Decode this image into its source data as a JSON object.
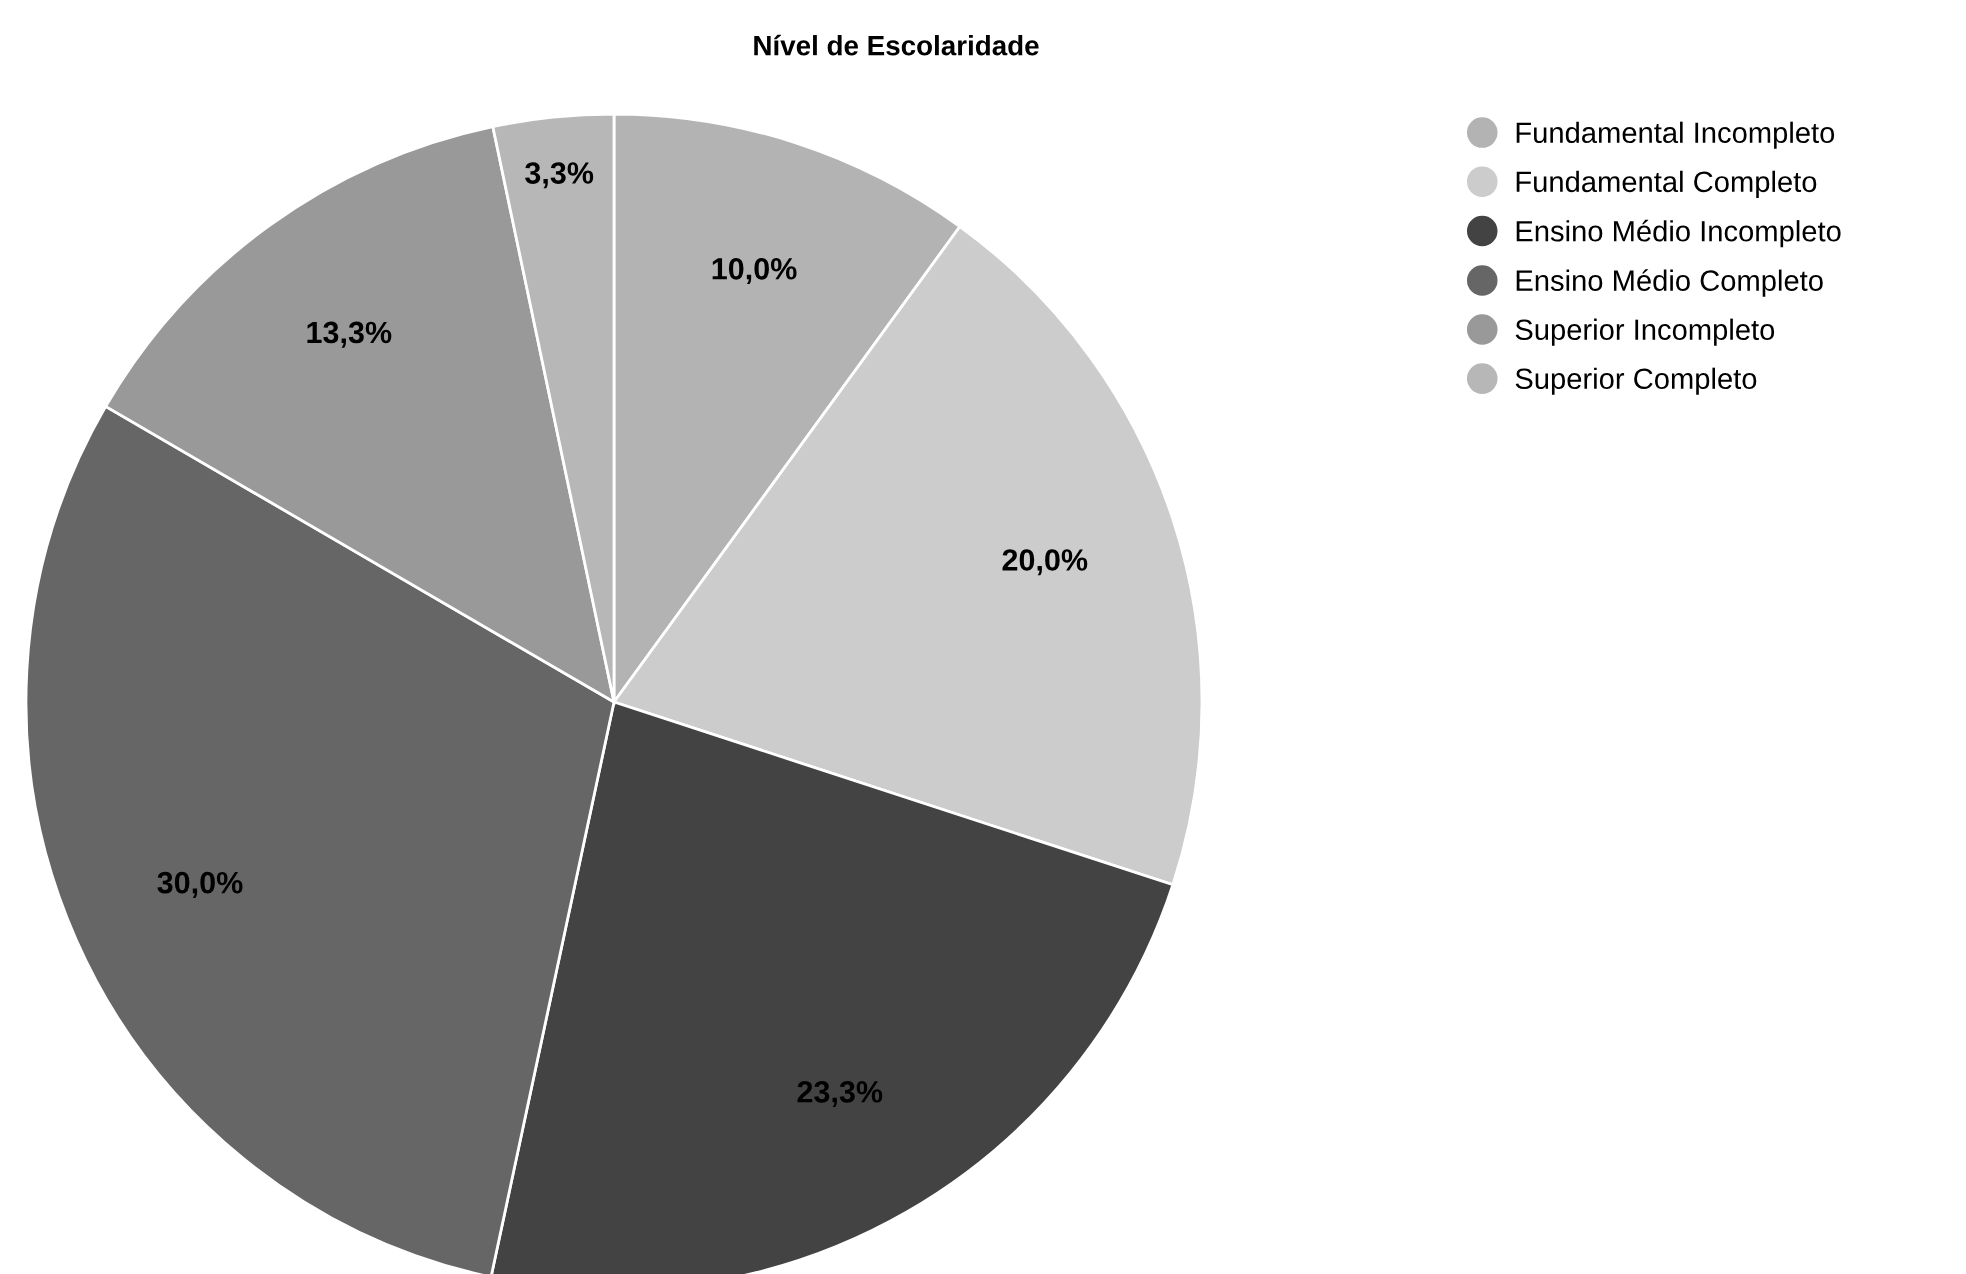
{
  "chart_data": {
    "type": "pie",
    "title": "Nível de Escolaridade",
    "categories": [
      "Fundamental Incompleto",
      "Fundamental Completo",
      "Ensino Médio Incompleto",
      "Ensino Médio Completo",
      "Superior Incompleto",
      "Superior Completo"
    ],
    "values": [
      10.0,
      20.0,
      23.3,
      30.0,
      13.3,
      3.3
    ],
    "value_labels": [
      "10,0%",
      "20,0%",
      "23,3%",
      "30,0%",
      "13,3%",
      "3,3%"
    ],
    "colors": [
      "#b3b3b3",
      "#cccccc",
      "#434343",
      "#666666",
      "#999999",
      "#b7b7b7"
    ],
    "legend": "right"
  }
}
